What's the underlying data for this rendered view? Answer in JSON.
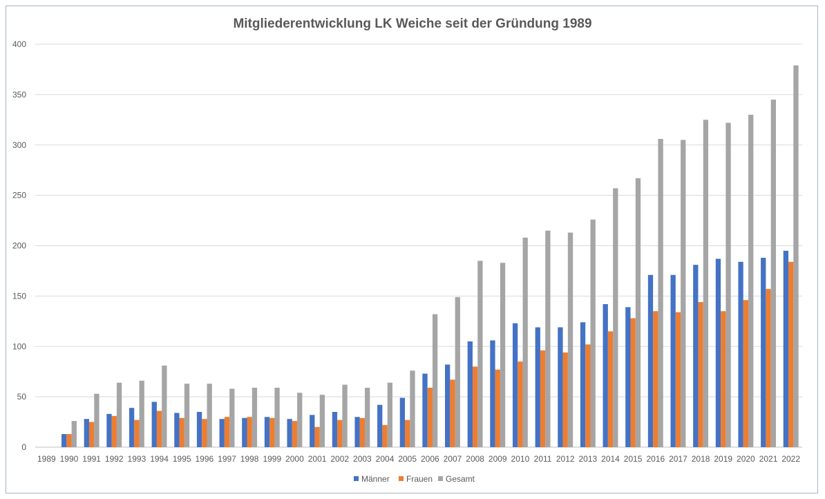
{
  "chart_data": {
    "type": "bar",
    "title": "Mitgliederentwicklung LK Weiche seit der Gründung 1989",
    "xlabel": "",
    "ylabel": "",
    "ylim": [
      0,
      400
    ],
    "yticks": [
      0,
      50,
      100,
      150,
      200,
      250,
      300,
      350,
      400
    ],
    "grid": true,
    "legend_position": "bottom",
    "categories": [
      "1989",
      "1990",
      "1991",
      "1992",
      "1993",
      "1994",
      "1995",
      "1996",
      "1997",
      "1998",
      "1999",
      "2000",
      "2001",
      "2002",
      "2003",
      "2004",
      "2005",
      "2006",
      "2007",
      "2008",
      "2009",
      "2010",
      "2011",
      "2012",
      "2013",
      "2014",
      "2015",
      "2016",
      "2017",
      "2018",
      "2019",
      "2020",
      "2021",
      "2022"
    ],
    "series": [
      {
        "name": "Männer",
        "color": "#4472c4",
        "values": [
          0,
          13,
          28,
          33,
          39,
          45,
          34,
          35,
          28,
          29,
          30,
          28,
          32,
          35,
          30,
          42,
          49,
          73,
          82,
          105,
          106,
          123,
          119,
          119,
          124,
          142,
          139,
          171,
          171,
          181,
          187,
          184,
          188,
          195
        ]
      },
      {
        "name": "Frauen",
        "color": "#ed7d31",
        "values": [
          0,
          13,
          25,
          31,
          27,
          36,
          29,
          28,
          30,
          30,
          29,
          26,
          20,
          27,
          29,
          22,
          27,
          59,
          67,
          80,
          77,
          85,
          96,
          94,
          102,
          115,
          128,
          135,
          134,
          144,
          135,
          146,
          157,
          184
        ]
      },
      {
        "name": "Gesamt",
        "color": "#a5a5a5",
        "values": [
          0,
          26,
          53,
          64,
          66,
          81,
          63,
          63,
          58,
          59,
          59,
          54,
          52,
          62,
          59,
          64,
          76,
          132,
          149,
          185,
          183,
          208,
          215,
          213,
          226,
          257,
          267,
          306,
          305,
          325,
          322,
          330,
          345,
          379
        ]
      }
    ]
  }
}
